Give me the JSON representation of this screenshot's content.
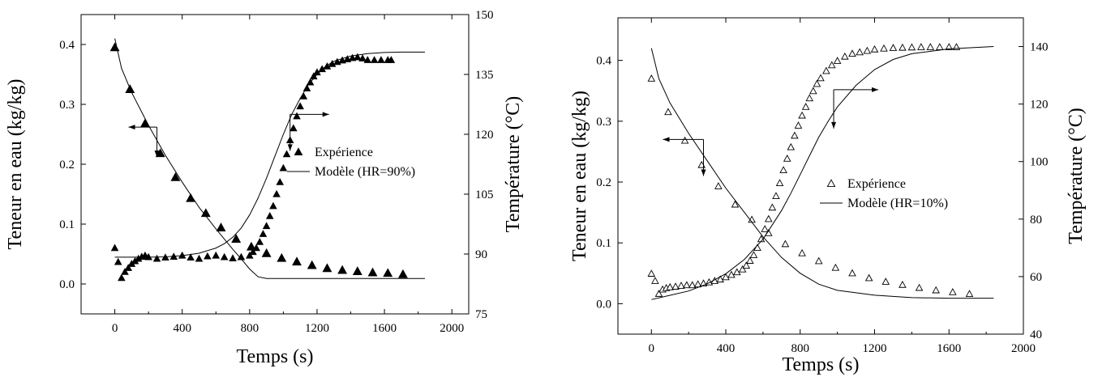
{
  "chart_data": [
    {
      "type": "scatter",
      "xlabel": "Temps (s)",
      "ylabel": "Teneur en eau (kg/kg)",
      "y2label": "Température (°C)",
      "xlim": [
        -200,
        2100
      ],
      "ylim": [
        -0.05,
        0.45
      ],
      "y2lim": [
        75,
        150
      ],
      "xticks": [
        0,
        400,
        800,
        1200,
        1600,
        2000
      ],
      "yticks": [
        0.0,
        0.1,
        0.2,
        0.3,
        0.4
      ],
      "y2ticks": [
        75,
        90,
        105,
        120,
        135,
        150
      ],
      "legend_position": "right-middle",
      "legend": [
        {
          "label": "Expérience",
          "marker": "filled-triangle"
        },
        {
          "label": "Modèle (HR=90%)",
          "marker": "line"
        }
      ],
      "series": [
        {
          "name": "Expérience",
          "axis": "left",
          "marker": "filled-triangle",
          "x": [
            0,
            90,
            180,
            270,
            360,
            450,
            540,
            630,
            720,
            810,
            900,
            990,
            1080,
            1170,
            1260,
            1350,
            1440,
            1530,
            1620,
            1710
          ],
          "y": [
            0.395,
            0.325,
            0.268,
            0.218,
            0.178,
            0.143,
            0.118,
            0.094,
            0.075,
            0.062,
            0.051,
            0.043,
            0.037,
            0.031,
            0.026,
            0.023,
            0.021,
            0.019,
            0.018,
            0.016
          ]
        },
        {
          "name": "Expérience",
          "axis": "right",
          "marker": "filled-triangle",
          "x": [
            0,
            20,
            40,
            60,
            80,
            100,
            120,
            140,
            160,
            180,
            200,
            250,
            300,
            350,
            400,
            450,
            500,
            550,
            600,
            650,
            700,
            750,
            800,
            820,
            840,
            860,
            880,
            900,
            920,
            940,
            960,
            980,
            1000,
            1020,
            1040,
            1060,
            1080,
            1100,
            1120,
            1140,
            1160,
            1180,
            1200,
            1230,
            1260,
            1290,
            1320,
            1350,
            1380,
            1410,
            1440,
            1470,
            1500,
            1540,
            1580,
            1620,
            1640
          ],
          "y": [
            91.5,
            88.0,
            84.0,
            85.5,
            86.5,
            87.5,
            88.2,
            88.8,
            89.3,
            89.6,
            89.2,
            88.8,
            89.1,
            89.3,
            89.6,
            89.1,
            88.8,
            89.4,
            89.6,
            89.2,
            88.9,
            89.2,
            89.6,
            90.5,
            91.5,
            93.0,
            95.0,
            97.0,
            99.5,
            102.0,
            105.0,
            108.0,
            111.5,
            115.0,
            118.5,
            121.5,
            124.5,
            127.0,
            129.5,
            131.5,
            133.0,
            134.5,
            135.5,
            136.3,
            137.0,
            137.6,
            138.1,
            138.5,
            138.8,
            139.1,
            139.3,
            139.0,
            138.6,
            138.6,
            138.6,
            138.6,
            138.6
          ]
        },
        {
          "name": "Modèle (HR=90%)",
          "axis": "left",
          "line": true,
          "x": [
            0,
            40,
            100,
            200,
            300,
            400,
            500,
            600,
            700,
            750,
            800,
            850,
            900,
            1000,
            1200,
            1400,
            1600,
            1840
          ],
          "y": [
            0.41,
            0.36,
            0.32,
            0.265,
            0.215,
            0.17,
            0.128,
            0.092,
            0.058,
            0.042,
            0.025,
            0.012,
            0.009,
            0.009,
            0.009,
            0.009,
            0.009,
            0.009
          ]
        },
        {
          "name": "Modèle (HR=90%)",
          "axis": "right",
          "line": true,
          "x": [
            0,
            100,
            200,
            300,
            400,
            500,
            600,
            650,
            700,
            750,
            800,
            850,
            900,
            950,
            1000,
            1050,
            1100,
            1150,
            1200,
            1250,
            1300,
            1400,
            1500,
            1600,
            1700,
            1840
          ],
          "y": [
            89.2,
            89.2,
            89.2,
            89.3,
            89.6,
            90.2,
            91.5,
            92.6,
            94.2,
            96.5,
            99.8,
            104.0,
            109.0,
            114.5,
            120.0,
            125.0,
            129.0,
            132.5,
            135.0,
            137.0,
            138.3,
            139.6,
            140.2,
            140.5,
            140.6,
            140.6
          ]
        }
      ],
      "annotations": [
        {
          "type": "arrow",
          "direction": "left",
          "points_to": "left axis"
        },
        {
          "type": "arrow",
          "direction": "down"
        },
        {
          "type": "arrow",
          "direction": "right",
          "points_to": "right axis"
        },
        {
          "type": "arrow",
          "direction": "down"
        }
      ]
    },
    {
      "type": "scatter",
      "xlabel": "Temps (s)",
      "ylabel": "Teneur en eau (kg/kg)",
      "y2label": "Température (°C)",
      "xlim": [
        -180,
        2000
      ],
      "ylim": [
        -0.05,
        0.47
      ],
      "y2lim": [
        40,
        150
      ],
      "xticks": [
        0,
        400,
        800,
        1200,
        1600,
        2000
      ],
      "yticks": [
        0.0,
        0.1,
        0.2,
        0.3,
        0.4
      ],
      "y2ticks": [
        40,
        60,
        80,
        100,
        120,
        140
      ],
      "legend_position": "right-middle",
      "legend": [
        {
          "label": "Expérience",
          "marker": "open-triangle"
        },
        {
          "label": "Modèle (HR=10%)",
          "marker": "line"
        }
      ],
      "series": [
        {
          "name": "Expérience",
          "axis": "left",
          "marker": "open-triangle",
          "x": [
            0,
            90,
            180,
            270,
            360,
            450,
            540,
            630,
            720,
            810,
            900,
            990,
            1080,
            1170,
            1260,
            1350,
            1440,
            1530,
            1620,
            1710
          ],
          "y": [
            0.37,
            0.315,
            0.268,
            0.228,
            0.193,
            0.163,
            0.138,
            0.116,
            0.098,
            0.083,
            0.07,
            0.059,
            0.05,
            0.042,
            0.036,
            0.031,
            0.026,
            0.022,
            0.019,
            0.016
          ]
        },
        {
          "name": "Expérience",
          "axis": "right",
          "marker": "open-triangle",
          "x": [
            0,
            20,
            40,
            60,
            80,
            100,
            130,
            160,
            190,
            220,
            250,
            280,
            310,
            340,
            370,
            400,
            430,
            460,
            490,
            510,
            530,
            550,
            570,
            590,
            610,
            630,
            650,
            670,
            690,
            710,
            730,
            750,
            770,
            790,
            810,
            830,
            850,
            870,
            890,
            910,
            940,
            970,
            1000,
            1040,
            1080,
            1120,
            1160,
            1200,
            1250,
            1300,
            1350,
            1400,
            1450,
            1500,
            1550,
            1600,
            1640
          ],
          "y": [
            61.0,
            58.5,
            54.0,
            55.5,
            56.0,
            56.3,
            56.5,
            56.8,
            57.0,
            57.0,
            57.3,
            57.6,
            58.0,
            58.5,
            59.0,
            59.8,
            60.6,
            61.5,
            62.5,
            63.8,
            65.5,
            67.5,
            70.0,
            73.0,
            76.5,
            80.0,
            84.0,
            88.0,
            92.5,
            97.0,
            101.0,
            105.0,
            109.0,
            112.5,
            116.0,
            119.0,
            122.0,
            124.5,
            127.0,
            129.0,
            131.5,
            133.5,
            135.0,
            136.5,
            137.5,
            138.0,
            138.5,
            139.0,
            139.3,
            139.5,
            139.6,
            139.7,
            139.8,
            139.8,
            139.8,
            139.8,
            139.8
          ]
        },
        {
          "name": "Modèle (HR=10%)",
          "axis": "left",
          "line": true,
          "x": [
            0,
            40,
            100,
            200,
            300,
            400,
            500,
            600,
            700,
            800,
            900,
            1000,
            1200,
            1400,
            1600,
            1840
          ],
          "y": [
            0.42,
            0.37,
            0.33,
            0.28,
            0.235,
            0.19,
            0.15,
            0.11,
            0.076,
            0.05,
            0.032,
            0.022,
            0.014,
            0.01,
            0.009,
            0.009
          ]
        },
        {
          "name": "Modèle (HR=10%)",
          "axis": "right",
          "line": true,
          "x": [
            0,
            100,
            200,
            300,
            400,
            500,
            600,
            700,
            750,
            800,
            850,
            900,
            950,
            1000,
            1100,
            1200,
            1300,
            1400,
            1600,
            1840
          ],
          "y": [
            52.0,
            53.5,
            55.0,
            57.5,
            61.0,
            66.0,
            73.0,
            83.0,
            89.0,
            95.5,
            102.0,
            108.5,
            114.0,
            119.0,
            126.5,
            132.0,
            135.5,
            137.5,
            139.2,
            140.0
          ]
        }
      ],
      "annotations": [
        {
          "type": "arrow",
          "direction": "left",
          "points_to": "left axis"
        },
        {
          "type": "arrow",
          "direction": "down"
        },
        {
          "type": "arrow",
          "direction": "right",
          "points_to": "right axis"
        },
        {
          "type": "arrow",
          "direction": "down"
        }
      ]
    }
  ]
}
